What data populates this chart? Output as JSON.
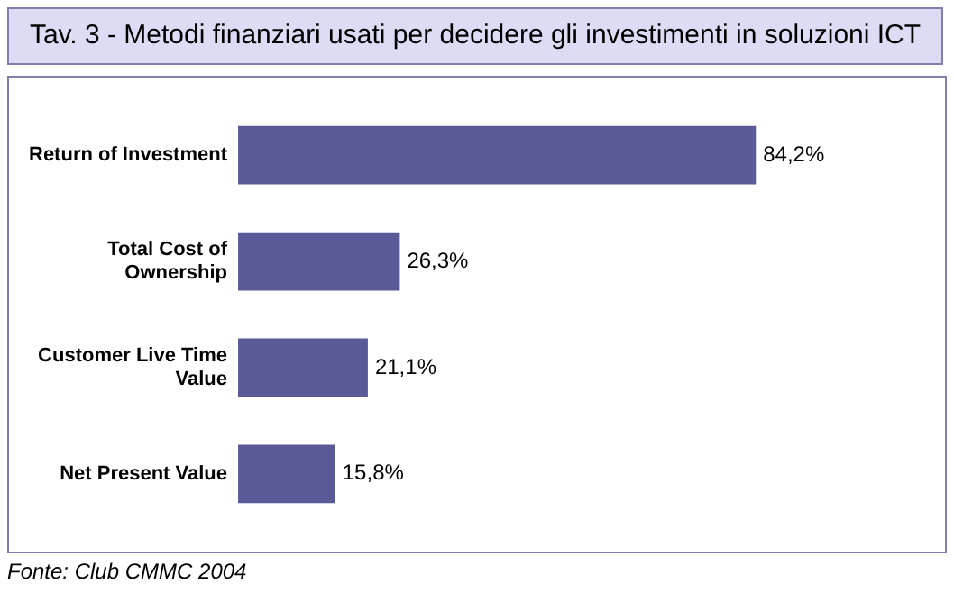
{
  "chart_data": {
    "type": "bar",
    "orientation": "horizontal",
    "title": "Tav. 3 - Metodi finanziari usati per decidere gli investimenti in soluzioni ICT",
    "categories": [
      "Return of Investment",
      "Total Cost of Ownership",
      "Customer Live Time Value",
      "Net Present Value"
    ],
    "values": [
      84.2,
      26.3,
      21.1,
      15.8
    ],
    "value_labels": [
      "84,2%",
      "26,3%",
      "21,1%",
      "15,8%"
    ],
    "color": "#5a5a96",
    "tick_labels": "y",
    "grid": false,
    "legend": false,
    "annotations": [
      "Fonte: Club CMMC 2004"
    ]
  }
}
